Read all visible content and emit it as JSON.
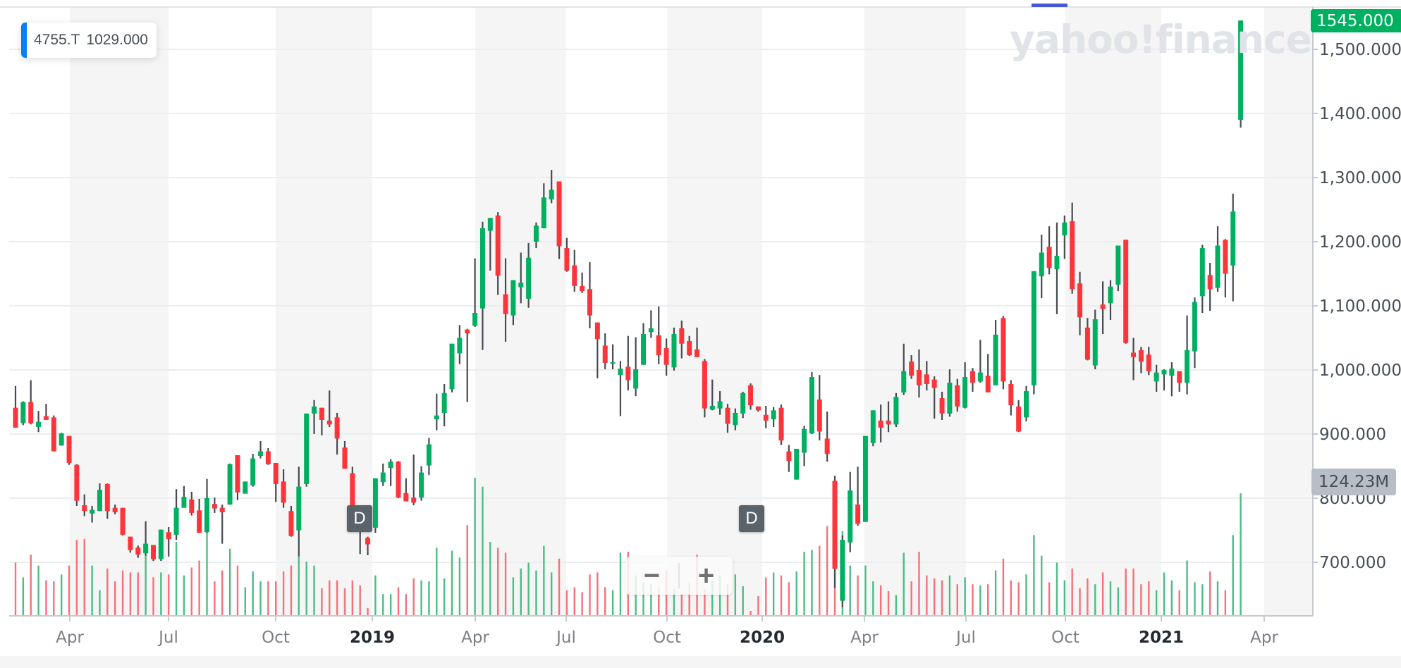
{
  "tooltip": {
    "symbol": "4755.T",
    "value": "1029.000"
  },
  "watermark": "yahoo!finance",
  "last_price_label": "1545.000",
  "last_volume_label": "124.23M",
  "dividend_marker": "D",
  "zoom_controls": {
    "zoom_out": "−",
    "zoom_in": "+"
  },
  "colors": {
    "up": "#00b061",
    "down": "#ff333a",
    "vol_up": "#4cbd86",
    "vol_down": "#f7707a",
    "wick": "#464b51",
    "accent": "#0081f2"
  },
  "chart_data": {
    "type": "candlestick",
    "symbol": "4755.T",
    "interval": "weekly",
    "yaxis": {
      "ticks": [
        "700.000",
        "800.000",
        "900.000",
        "1,000.000",
        "1,100.000",
        "1,200.000",
        "1,300.000",
        "1,400.000",
        "1,500.000"
      ],
      "tick_values": [
        700,
        800,
        900,
        1000,
        1100,
        1200,
        1300,
        1400,
        1500
      ],
      "ylim": [
        615,
        1560
      ]
    },
    "xaxis": {
      "ticks": [
        {
          "label": "Apr",
          "year": false
        },
        {
          "label": "Jul",
          "year": false
        },
        {
          "label": "Oct",
          "year": false
        },
        {
          "label": "2019",
          "year": true
        },
        {
          "label": "Apr",
          "year": false
        },
        {
          "label": "Jul",
          "year": false
        },
        {
          "label": "Oct",
          "year": false
        },
        {
          "label": "2020",
          "year": true
        },
        {
          "label": "Apr",
          "year": false
        },
        {
          "label": "Jul",
          "year": false
        },
        {
          "label": "Oct",
          "year": false
        },
        {
          "label": "2021",
          "year": true
        },
        {
          "label": "Apr",
          "year": false
        }
      ]
    },
    "volume_unit": "M",
    "ohlc": [
      [
        941,
        975,
        910,
        910
      ],
      [
        917,
        951,
        914,
        950
      ],
      [
        950,
        984,
        915,
        917
      ],
      [
        911,
        936,
        903,
        919
      ],
      [
        928,
        947,
        922,
        922
      ],
      [
        926,
        929,
        873,
        873
      ],
      [
        882,
        902,
        882,
        901
      ],
      [
        897,
        897,
        852,
        855
      ],
      [
        852,
        853,
        788,
        796
      ],
      [
        789,
        806,
        772,
        780
      ],
      [
        776,
        788,
        762,
        782
      ],
      [
        780,
        823,
        780,
        813
      ],
      [
        822,
        823,
        768,
        780
      ],
      [
        785,
        790,
        775,
        778
      ],
      [
        785,
        785,
        742,
        743
      ],
      [
        740,
        740,
        715,
        719
      ],
      [
        723,
        726,
        707,
        712
      ],
      [
        714,
        764,
        710,
        729
      ],
      [
        727,
        727,
        702,
        705
      ],
      [
        705,
        751,
        702,
        751
      ],
      [
        747,
        755,
        709,
        736
      ],
      [
        743,
        814,
        735,
        785
      ],
      [
        785,
        819,
        785,
        802
      ],
      [
        798,
        810,
        773,
        777
      ],
      [
        781,
        799,
        746,
        746
      ],
      [
        747,
        830,
        746,
        800
      ],
      [
        791,
        801,
        777,
        784
      ],
      [
        785,
        790,
        729,
        778
      ],
      [
        790,
        854,
        790,
        853
      ],
      [
        867,
        867,
        797,
        809
      ],
      [
        807,
        826,
        807,
        826
      ],
      [
        820,
        869,
        818,
        862
      ],
      [
        866,
        889,
        862,
        873
      ],
      [
        873,
        878,
        852,
        853
      ],
      [
        855,
        855,
        794,
        822
      ],
      [
        826,
        845,
        785,
        793
      ],
      [
        780,
        788,
        740,
        741
      ],
      [
        750,
        849,
        709,
        818
      ],
      [
        822,
        932,
        818,
        932
      ],
      [
        932,
        953,
        900,
        943
      ],
      [
        941,
        941,
        898,
        922
      ],
      [
        921,
        968,
        911,
        915
      ],
      [
        926,
        933,
        868,
        893
      ],
      [
        879,
        889,
        846,
        846
      ],
      [
        839,
        849,
        770,
        775
      ],
      [
        770,
        770,
        713,
        755
      ],
      [
        738,
        740,
        711,
        728
      ],
      [
        754,
        831,
        746,
        831
      ],
      [
        825,
        854,
        819,
        840
      ],
      [
        847,
        861,
        819,
        857
      ],
      [
        857,
        858,
        800,
        801
      ],
      [
        808,
        831,
        795,
        795
      ],
      [
        801,
        868,
        789,
        793
      ],
      [
        801,
        850,
        796,
        840
      ],
      [
        851,
        894,
        836,
        884
      ],
      [
        923,
        963,
        906,
        929
      ],
      [
        933,
        978,
        912,
        964
      ],
      [
        970,
        1041,
        965,
        1041
      ],
      [
        1026,
        1070,
        1009,
        1050
      ],
      [
        1063,
        1064,
        950,
        1057
      ],
      [
        1069,
        1174,
        1067,
        1089
      ],
      [
        1096,
        1231,
        1031,
        1221
      ],
      [
        1217,
        1237,
        1155,
        1237
      ],
      [
        1241,
        1246,
        1117,
        1147
      ],
      [
        1118,
        1174,
        1044,
        1087
      ],
      [
        1085,
        1140,
        1070,
        1140
      ],
      [
        1129,
        1183,
        1104,
        1136
      ],
      [
        1111,
        1198,
        1097,
        1175
      ],
      [
        1200,
        1230,
        1190,
        1225
      ],
      [
        1221,
        1291,
        1221,
        1269
      ],
      [
        1266,
        1312,
        1260,
        1281
      ],
      [
        1294,
        1294,
        1173,
        1193
      ],
      [
        1190,
        1206,
        1153,
        1155
      ],
      [
        1163,
        1187,
        1122,
        1131
      ],
      [
        1131,
        1152,
        1120,
        1123
      ],
      [
        1126,
        1168,
        1065,
        1085
      ],
      [
        1074,
        1074,
        987,
        1048
      ],
      [
        1038,
        1057,
        1001,
        1011
      ],
      [
        1011,
        1040,
        1001,
        1012
      ],
      [
        992,
        1014,
        928,
        1002
      ],
      [
        1005,
        1053,
        968,
        984
      ],
      [
        971,
        1051,
        959,
        1001
      ],
      [
        1008,
        1073,
        1008,
        1056
      ],
      [
        1059,
        1093,
        1050,
        1065
      ],
      [
        1054,
        1099,
        1009,
        1023
      ],
      [
        1034,
        1049,
        991,
        1008
      ],
      [
        1004,
        1066,
        999,
        1056
      ],
      [
        1065,
        1077,
        1018,
        1041
      ],
      [
        1045,
        1053,
        1022,
        1023
      ],
      [
        1032,
        1066,
        1020,
        1020
      ],
      [
        1014,
        1017,
        926,
        940
      ],
      [
        938,
        985,
        937,
        944
      ],
      [
        940,
        967,
        930,
        951
      ],
      [
        941,
        947,
        902,
        916
      ],
      [
        914,
        940,
        906,
        933
      ],
      [
        932,
        966,
        925,
        964
      ],
      [
        976,
        979,
        938,
        945
      ],
      [
        943,
        943,
        935,
        937
      ],
      [
        930,
        944,
        909,
        921
      ],
      [
        923,
        942,
        911,
        937
      ],
      [
        941,
        946,
        883,
        890
      ],
      [
        873,
        883,
        841,
        858
      ],
      [
        829,
        877,
        829,
        877
      ],
      [
        871,
        913,
        850,
        908
      ],
      [
        901,
        997,
        900,
        989
      ],
      [
        954,
        992,
        890,
        904
      ],
      [
        893,
        935,
        857,
        869
      ],
      [
        827,
        835,
        660,
        690
      ],
      [
        640,
        742,
        630,
        735
      ],
      [
        731,
        841,
        716,
        812
      ],
      [
        790,
        849,
        757,
        760
      ],
      [
        763,
        897,
        763,
        897
      ],
      [
        886,
        937,
        881,
        937
      ],
      [
        921,
        946,
        887,
        910
      ],
      [
        921,
        951,
        903,
        915
      ],
      [
        915,
        964,
        911,
        958
      ],
      [
        965,
        1041,
        961,
        998
      ],
      [
        1013,
        1023,
        986,
        991
      ],
      [
        1000,
        1032,
        957,
        976
      ],
      [
        993,
        1014,
        968,
        978
      ],
      [
        985,
        990,
        924,
        972
      ],
      [
        956,
        966,
        922,
        932
      ],
      [
        932,
        1001,
        927,
        980
      ],
      [
        976,
        986,
        935,
        943
      ],
      [
        941,
        1012,
        940,
        989
      ],
      [
        998,
        1003,
        966,
        980
      ],
      [
        982,
        1047,
        980,
        996
      ],
      [
        991,
        1025,
        965,
        965
      ],
      [
        976,
        1078,
        976,
        1055
      ],
      [
        1081,
        1084,
        970,
        982
      ],
      [
        978,
        984,
        929,
        945
      ],
      [
        943,
        953,
        903,
        904
      ],
      [
        926,
        975,
        920,
        967
      ],
      [
        976,
        1154,
        962,
        1154
      ],
      [
        1146,
        1211,
        1112,
        1183
      ],
      [
        1192,
        1224,
        1149,
        1159
      ],
      [
        1157,
        1230,
        1087,
        1178
      ],
      [
        1210,
        1241,
        1173,
        1230
      ],
      [
        1232,
        1261,
        1119,
        1126
      ],
      [
        1135,
        1153,
        1054,
        1082
      ],
      [
        1066,
        1081,
        1015,
        1016
      ],
      [
        1007,
        1094,
        1001,
        1079
      ],
      [
        1102,
        1138,
        1056,
        1095
      ],
      [
        1104,
        1140,
        1078,
        1130
      ],
      [
        1133,
        1194,
        1123,
        1194
      ],
      [
        1203,
        1203,
        1041,
        1042
      ],
      [
        1027,
        1050,
        984,
        1020
      ],
      [
        1031,
        1036,
        995,
        1013
      ],
      [
        1024,
        1036,
        992,
        998
      ],
      [
        982,
        1008,
        966,
        996
      ],
      [
        993,
        1001,
        968,
        1000
      ],
      [
        991,
        1012,
        959,
        1002
      ],
      [
        998,
        998,
        966,
        980
      ],
      [
        980,
        1085,
        962,
        1031
      ],
      [
        1029,
        1113,
        1003,
        1106
      ],
      [
        1115,
        1195,
        1089,
        1190
      ],
      [
        1148,
        1167,
        1092,
        1126
      ],
      [
        1128,
        1224,
        1122,
        1194
      ],
      [
        1203,
        1204,
        1113,
        1150
      ],
      [
        1163,
        1275,
        1107,
        1247
      ],
      [
        1390,
        1545,
        1378,
        1545
      ]
    ],
    "volume": [
      54,
      39,
      62,
      51,
      36,
      35,
      42,
      51,
      77,
      78,
      51,
      26,
      48,
      35,
      46,
      44,
      44,
      61,
      39,
      44,
      42,
      75,
      41,
      49,
      56,
      86,
      35,
      46,
      68,
      51,
      29,
      45,
      35,
      35,
      35,
      45,
      51,
      60,
      55,
      51,
      28,
      36,
      36,
      28,
      36,
      31,
      8,
      41,
      22,
      22,
      29,
      22,
      38,
      36,
      35,
      69,
      38,
      66,
      59,
      92,
      140,
      131,
      75,
      69,
      64,
      39,
      48,
      54,
      46,
      71,
      44,
      58,
      26,
      29,
      24,
      42,
      44,
      29,
      26,
      64,
      65,
      41,
      34,
      32,
      29,
      46,
      27,
      22,
      34,
      62,
      27,
      36,
      41,
      32,
      42,
      30,
      5,
      20,
      39,
      44,
      41,
      34,
      45,
      65,
      67,
      71,
      91,
      77,
      86,
      51,
      41,
      51,
      35,
      31,
      25,
      21,
      64,
      35,
      65,
      41,
      38,
      36,
      41,
      32,
      39,
      32,
      31,
      32,
      46,
      58,
      36,
      34,
      42,
      82,
      61,
      34,
      54,
      36,
      48,
      28,
      38,
      32,
      44,
      35,
      29,
      48,
      48,
      32,
      35,
      26,
      44,
      36,
      26,
      56,
      34,
      32,
      45,
      35,
      26,
      82,
      124.23
    ]
  }
}
